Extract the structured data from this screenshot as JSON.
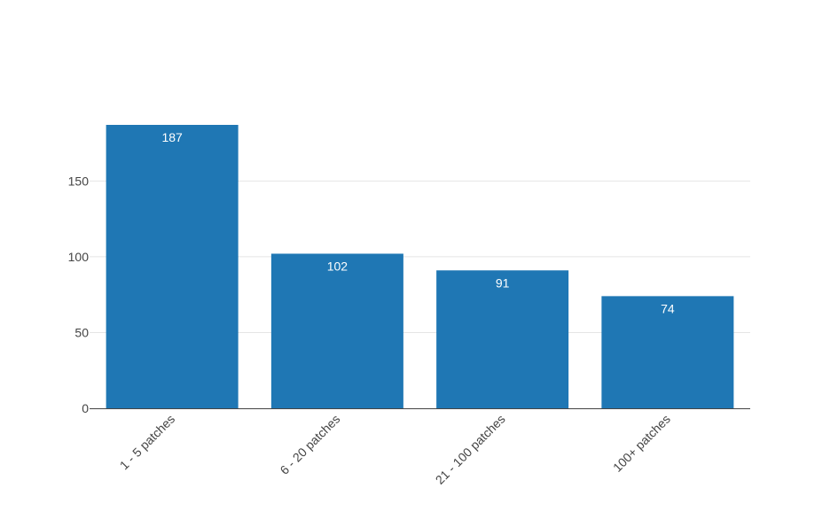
{
  "chart_data": {
    "type": "bar",
    "categories": [
      "1 - 5 patches",
      "6 - 20 patches",
      "21 - 100 patches",
      "100+ patches"
    ],
    "values": [
      187,
      102,
      91,
      74
    ],
    "title": "",
    "xlabel": "",
    "ylabel": "",
    "ylim": [
      0,
      187
    ],
    "yticks": [
      0,
      50,
      100,
      150
    ],
    "grid": true,
    "legend": "none",
    "colors": {
      "bar": "#1f77b4",
      "grid": "#e5e5e5",
      "axis": "#444444",
      "data_label": "#ffffff"
    }
  }
}
